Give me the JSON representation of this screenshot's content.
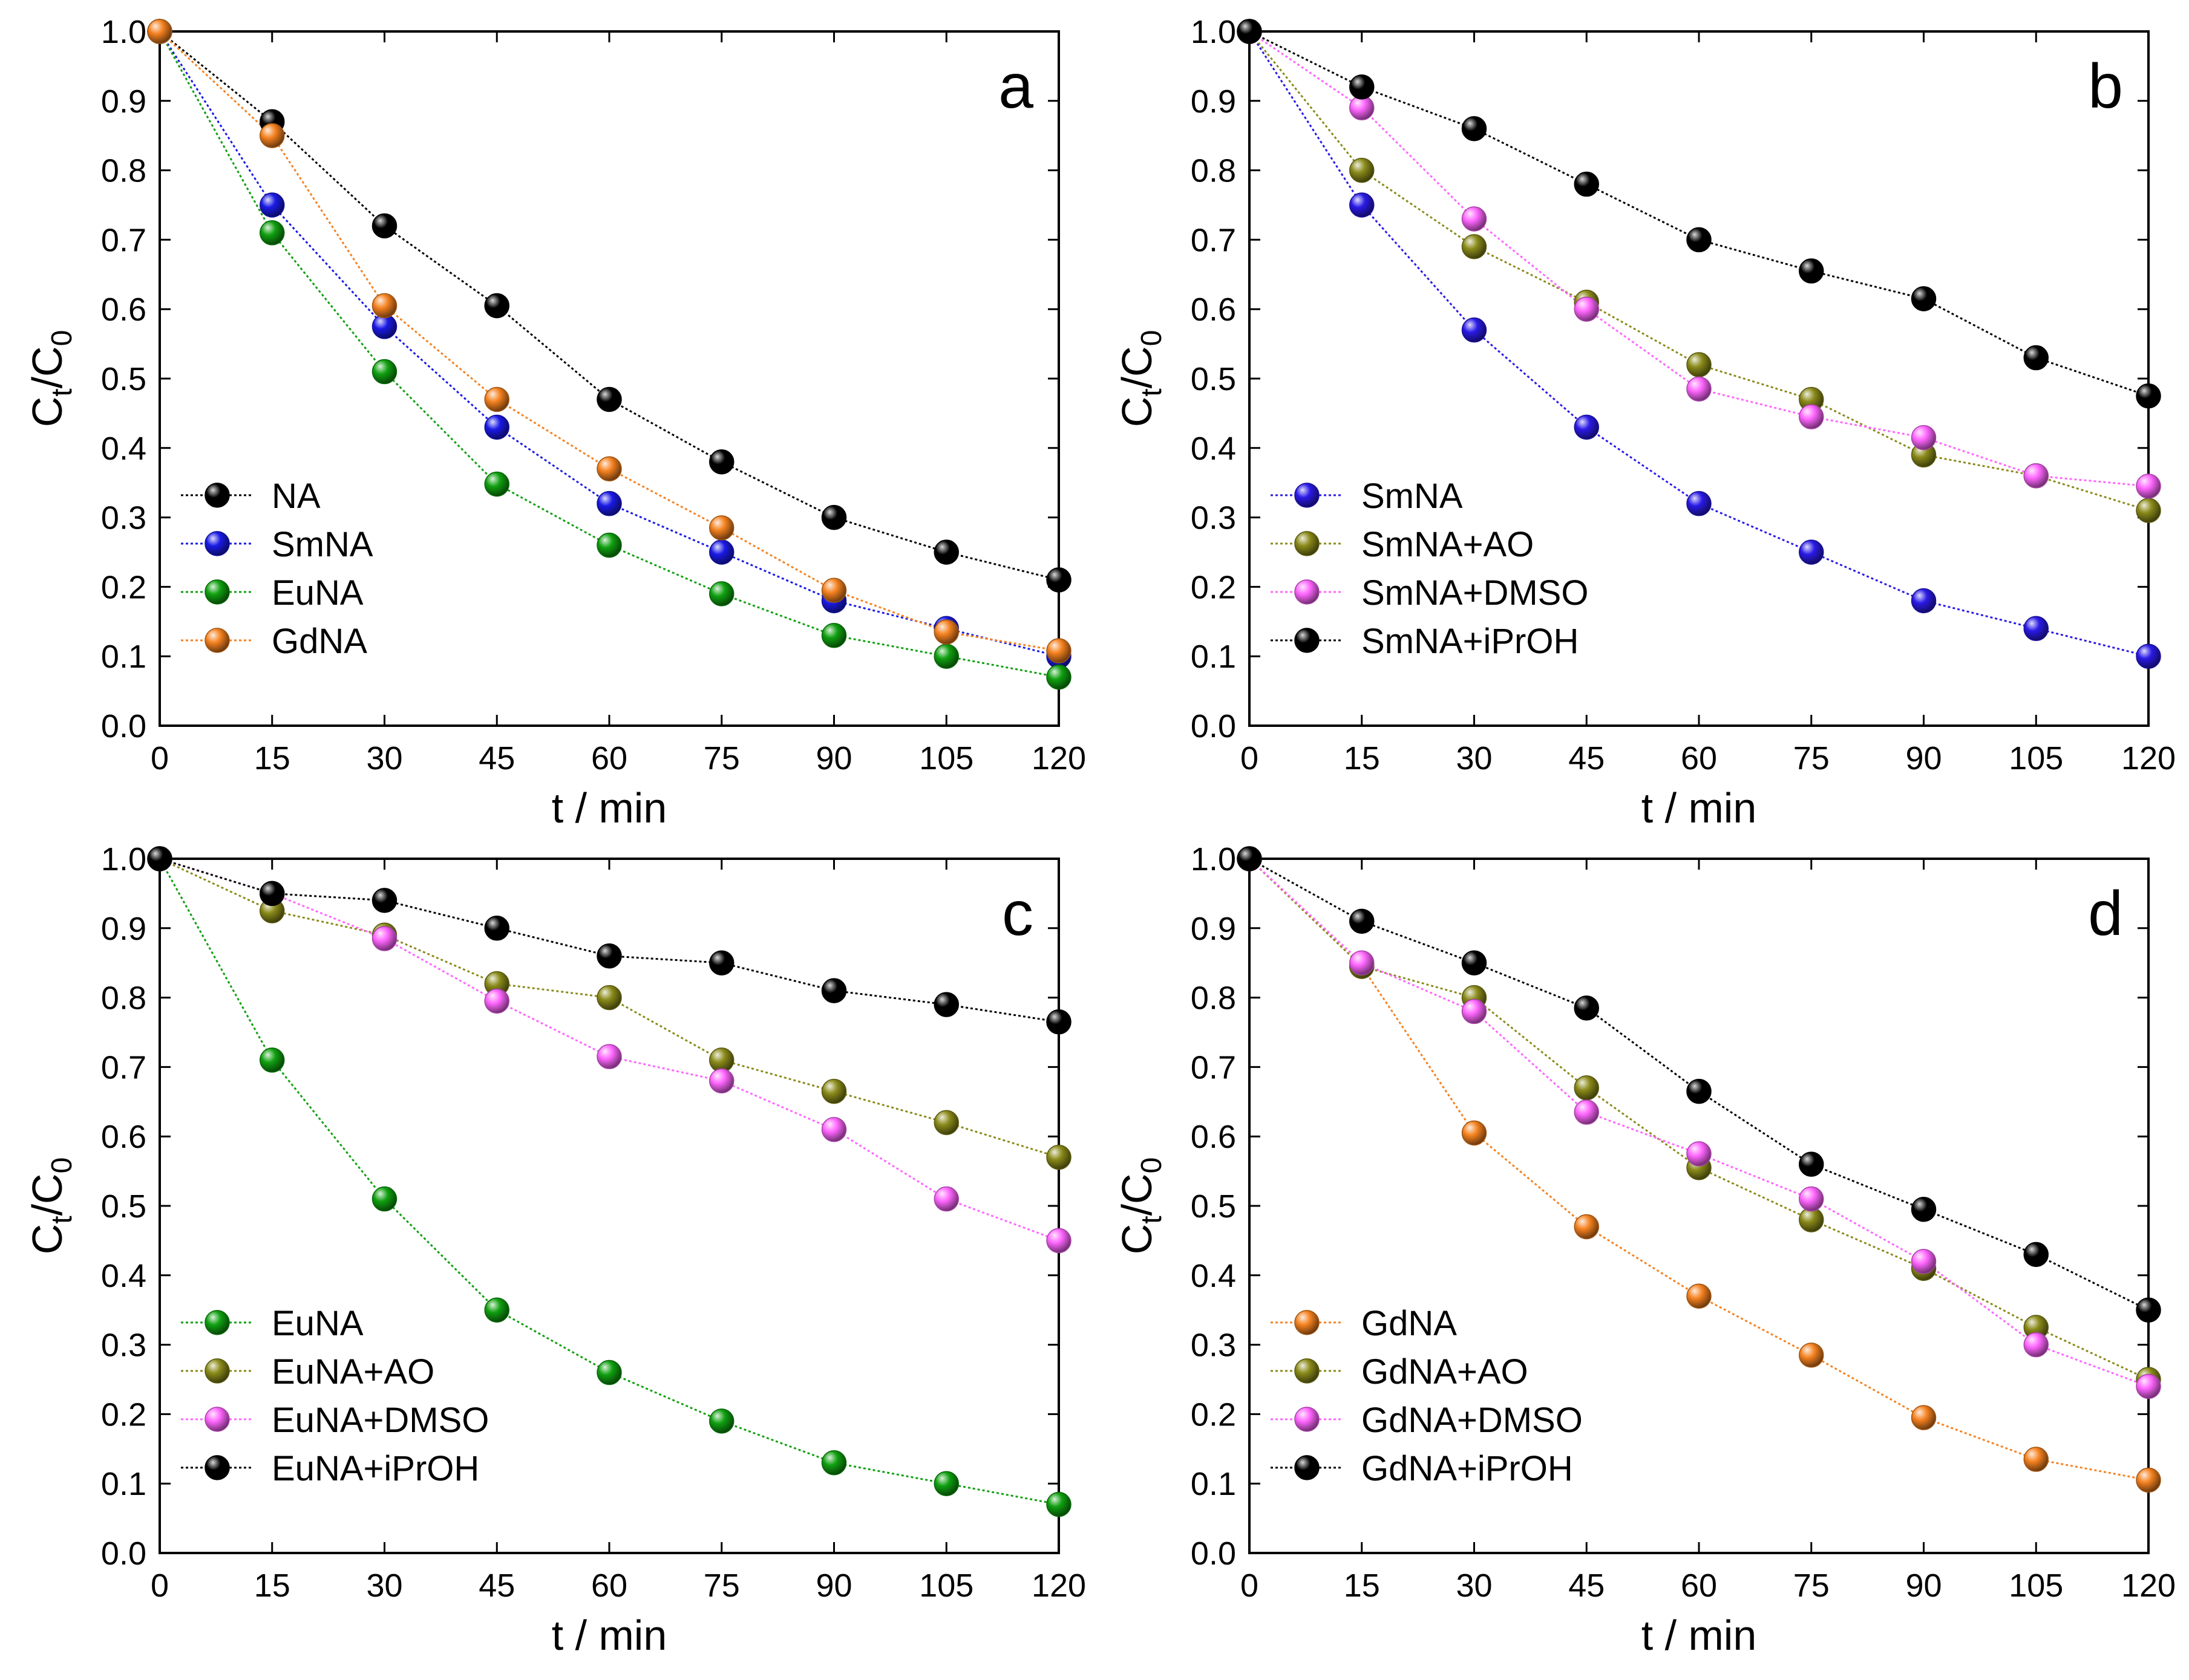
{
  "chart_data": [
    {
      "type": "line",
      "panel": "a",
      "xlabel": "t / min",
      "ylabel_main": "C",
      "ylabel_sub1": "t",
      "ylabel_slash": "/C",
      "ylabel_sub2": "0",
      "xlim": [
        0,
        120
      ],
      "ylim": [
        0,
        1.0
      ],
      "x_ticks": [
        0,
        15,
        30,
        45,
        60,
        75,
        90,
        105,
        120
      ],
      "y_ticks": [
        "0.0",
        "0.1",
        "0.2",
        "0.3",
        "0.4",
        "0.5",
        "0.6",
        "0.7",
        "0.8",
        "0.9",
        "1.0"
      ],
      "legend_position": "lower-left",
      "x": [
        0,
        15,
        30,
        45,
        60,
        75,
        90,
        105,
        120
      ],
      "series": [
        {
          "name": "NA",
          "color": "#000000",
          "values": [
            1.0,
            0.87,
            0.72,
            0.605,
            0.47,
            0.38,
            0.3,
            0.25,
            0.21
          ]
        },
        {
          "name": "SmNA",
          "color": "#1a1ae6",
          "values": [
            1.0,
            0.75,
            0.575,
            0.43,
            0.32,
            0.25,
            0.18,
            0.14,
            0.1
          ]
        },
        {
          "name": "EuNA",
          "color": "#10a010",
          "values": [
            1.0,
            0.71,
            0.51,
            0.348,
            0.26,
            0.19,
            0.13,
            0.1,
            0.07
          ]
        },
        {
          "name": "GdNA",
          "color": "#f58220",
          "values": [
            1.0,
            0.85,
            0.605,
            0.47,
            0.37,
            0.285,
            0.195,
            0.135,
            0.108
          ]
        }
      ]
    },
    {
      "type": "line",
      "panel": "b",
      "xlabel": "t / min",
      "ylabel_main": "C",
      "ylabel_sub1": "t",
      "ylabel_slash": "/C",
      "ylabel_sub2": "0",
      "xlim": [
        0,
        120
      ],
      "ylim": [
        0,
        1.0
      ],
      "x_ticks": [
        0,
        15,
        30,
        45,
        60,
        75,
        90,
        105,
        120
      ],
      "y_ticks": [
        "0.0",
        "0.1",
        "0.2",
        "0.3",
        "0.4",
        "0.5",
        "0.6",
        "0.7",
        "0.8",
        "0.9",
        "1.0"
      ],
      "legend_position": "lower-left",
      "x": [
        0,
        15,
        30,
        45,
        60,
        75,
        90,
        105,
        120
      ],
      "series": [
        {
          "name": "SmNA",
          "color": "#2a1ae6",
          "values": [
            1.0,
            0.75,
            0.57,
            0.43,
            0.32,
            0.25,
            0.18,
            0.14,
            0.1
          ]
        },
        {
          "name": "SmNA+AO",
          "color": "#8a8a1a",
          "values": [
            1.0,
            0.8,
            0.69,
            0.61,
            0.52,
            0.47,
            0.39,
            0.36,
            0.31
          ]
        },
        {
          "name": "SmNA+DMSO",
          "color": "#ff66ff",
          "values": [
            1.0,
            0.89,
            0.73,
            0.6,
            0.485,
            0.445,
            0.415,
            0.36,
            0.345
          ]
        },
        {
          "name": "SmNA+iPrOH",
          "color": "#000000",
          "values": [
            1.0,
            0.92,
            0.86,
            0.78,
            0.7,
            0.655,
            0.615,
            0.53,
            0.475
          ]
        }
      ]
    },
    {
      "type": "line",
      "panel": "c",
      "xlabel": "t / min",
      "ylabel_main": "C",
      "ylabel_sub1": "t",
      "ylabel_slash": "/C",
      "ylabel_sub2": "0",
      "xlim": [
        0,
        120
      ],
      "ylim": [
        0,
        1.0
      ],
      "x_ticks": [
        0,
        15,
        30,
        45,
        60,
        75,
        90,
        105,
        120
      ],
      "y_ticks": [
        "0.0",
        "0.1",
        "0.2",
        "0.3",
        "0.4",
        "0.5",
        "0.6",
        "0.7",
        "0.8",
        "0.9",
        "1.0"
      ],
      "legend_position": "lower-left",
      "x": [
        0,
        15,
        30,
        45,
        60,
        75,
        90,
        105,
        120
      ],
      "series": [
        {
          "name": "EuNA",
          "color": "#10a010",
          "values": [
            1.0,
            0.71,
            0.51,
            0.35,
            0.26,
            0.19,
            0.13,
            0.1,
            0.07
          ]
        },
        {
          "name": "EuNA+AO",
          "color": "#8a8a1a",
          "values": [
            1.0,
            0.925,
            0.89,
            0.82,
            0.8,
            0.71,
            0.665,
            0.62,
            0.57
          ]
        },
        {
          "name": "EuNA+DMSO",
          "color": "#ff66ff",
          "values": [
            1.0,
            0.95,
            0.885,
            0.795,
            0.715,
            0.68,
            0.61,
            0.51,
            0.45
          ]
        },
        {
          "name": "EuNA+iPrOH",
          "color": "#000000",
          "values": [
            1.0,
            0.95,
            0.94,
            0.9,
            0.86,
            0.85,
            0.81,
            0.79,
            0.765
          ]
        }
      ]
    },
    {
      "type": "line",
      "panel": "d",
      "xlabel": "t / min",
      "ylabel_main": "C",
      "ylabel_sub1": "t",
      "ylabel_slash": "/C",
      "ylabel_sub2": "0",
      "xlim": [
        0,
        120
      ],
      "ylim": [
        0,
        1.0
      ],
      "x_ticks": [
        0,
        15,
        30,
        45,
        60,
        75,
        90,
        105,
        120
      ],
      "y_ticks": [
        "0.0",
        "0.1",
        "0.2",
        "0.3",
        "0.4",
        "0.5",
        "0.6",
        "0.7",
        "0.8",
        "0.9",
        "1.0"
      ],
      "legend_position": "lower-left",
      "x": [
        0,
        15,
        30,
        45,
        60,
        75,
        90,
        105,
        120
      ],
      "series": [
        {
          "name": "GdNA",
          "color": "#f58220",
          "values": [
            1.0,
            0.845,
            0.605,
            0.47,
            0.37,
            0.285,
            0.195,
            0.135,
            0.105
          ]
        },
        {
          "name": "GdNA+AO",
          "color": "#8a8a1a",
          "values": [
            1.0,
            0.845,
            0.8,
            0.67,
            0.555,
            0.48,
            0.41,
            0.325,
            0.25
          ]
        },
        {
          "name": "GdNA+DMSO",
          "color": "#ff66ff",
          "values": [
            1.0,
            0.85,
            0.78,
            0.635,
            0.575,
            0.51,
            0.42,
            0.3,
            0.24
          ]
        },
        {
          "name": "GdNA+iPrOH",
          "color": "#000000",
          "values": [
            1.0,
            0.91,
            0.85,
            0.785,
            0.665,
            0.56,
            0.495,
            0.43,
            0.35
          ]
        }
      ]
    }
  ]
}
